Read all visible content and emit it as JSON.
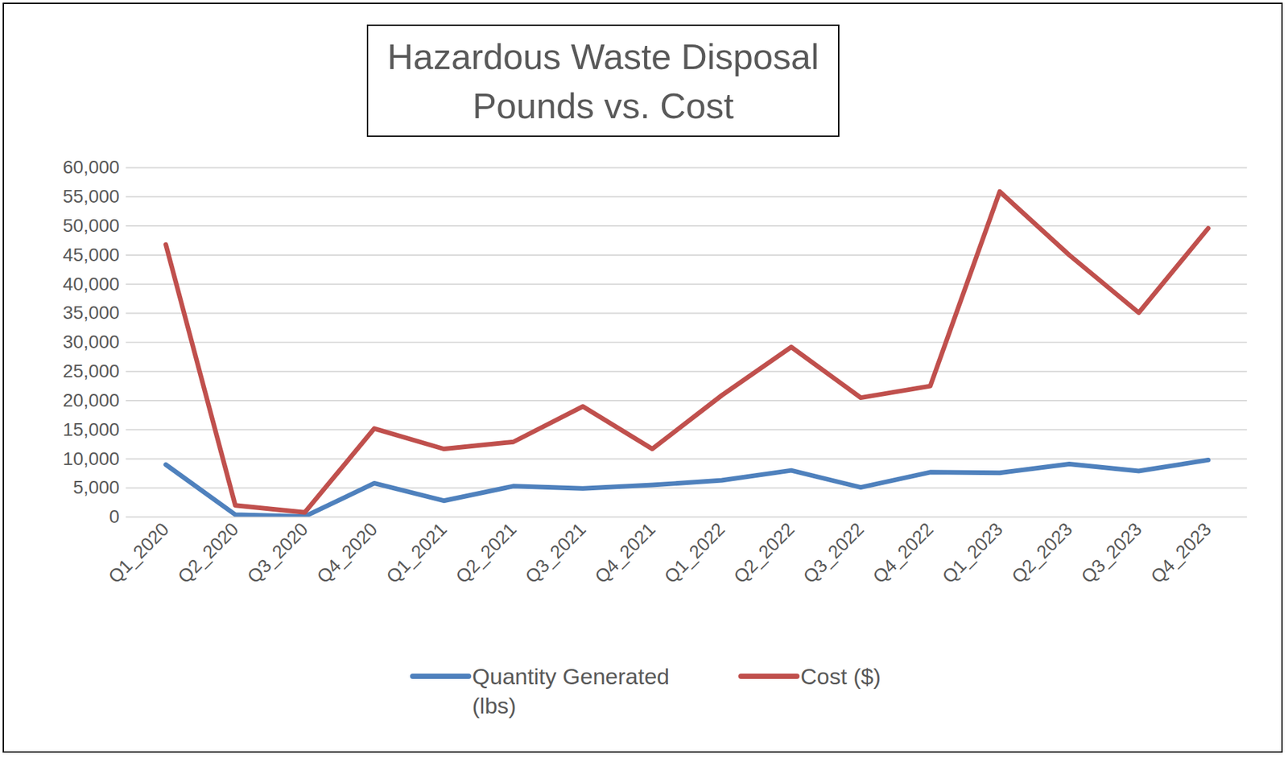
{
  "chart_data": {
    "type": "line",
    "title": "Hazardous Waste Disposal\nPounds vs. Cost",
    "categories": [
      "Q1_2020",
      "Q2_2020",
      "Q3_2020",
      "Q4_2020",
      "Q1_2021",
      "Q2_2021",
      "Q3_2021",
      "Q4_2021",
      "Q1_2022",
      "Q2_2022",
      "Q3_2022",
      "Q4_2022",
      "Q1_2023",
      "Q2_2023",
      "Q3_2023",
      "Q4_2023"
    ],
    "series": [
      {
        "name": "Quantity Generated (lbs)",
        "color": "#4f81bd",
        "values": [
          9000,
          400,
          100,
          5800,
          2800,
          5300,
          4900,
          5500,
          6300,
          8000,
          5100,
          7700,
          7600,
          9100,
          7900,
          9800
        ]
      },
      {
        "name": "Cost ($)",
        "color": "#c0504d",
        "values": [
          46800,
          2000,
          800,
          15200,
          11700,
          12900,
          19000,
          11700,
          20900,
          29200,
          20500,
          22500,
          55900,
          45000,
          35100,
          49600
        ]
      }
    ],
    "ylim": [
      0,
      60000
    ],
    "yticks": [
      0,
      {
        "value": 5000,
        "label": "5,000"
      },
      {
        "value": 10000,
        "label": "10,000"
      },
      {
        "value": 15000,
        "label": "15,000"
      },
      {
        "value": 20000,
        "label": "20,000"
      },
      {
        "value": 25000,
        "label": "25,000"
      },
      {
        "value": 30000,
        "label": "30,000"
      },
      {
        "value": 35000,
        "label": "35,000"
      },
      {
        "value": 40000,
        "label": "40,000"
      },
      {
        "value": 45000,
        "label": "45,000"
      },
      {
        "value": 50000,
        "label": "50,000"
      },
      {
        "value": 55000,
        "label": "55,000"
      },
      {
        "value": 60000,
        "label": "60,000"
      }
    ],
    "grid": true,
    "legend": "bottom"
  }
}
